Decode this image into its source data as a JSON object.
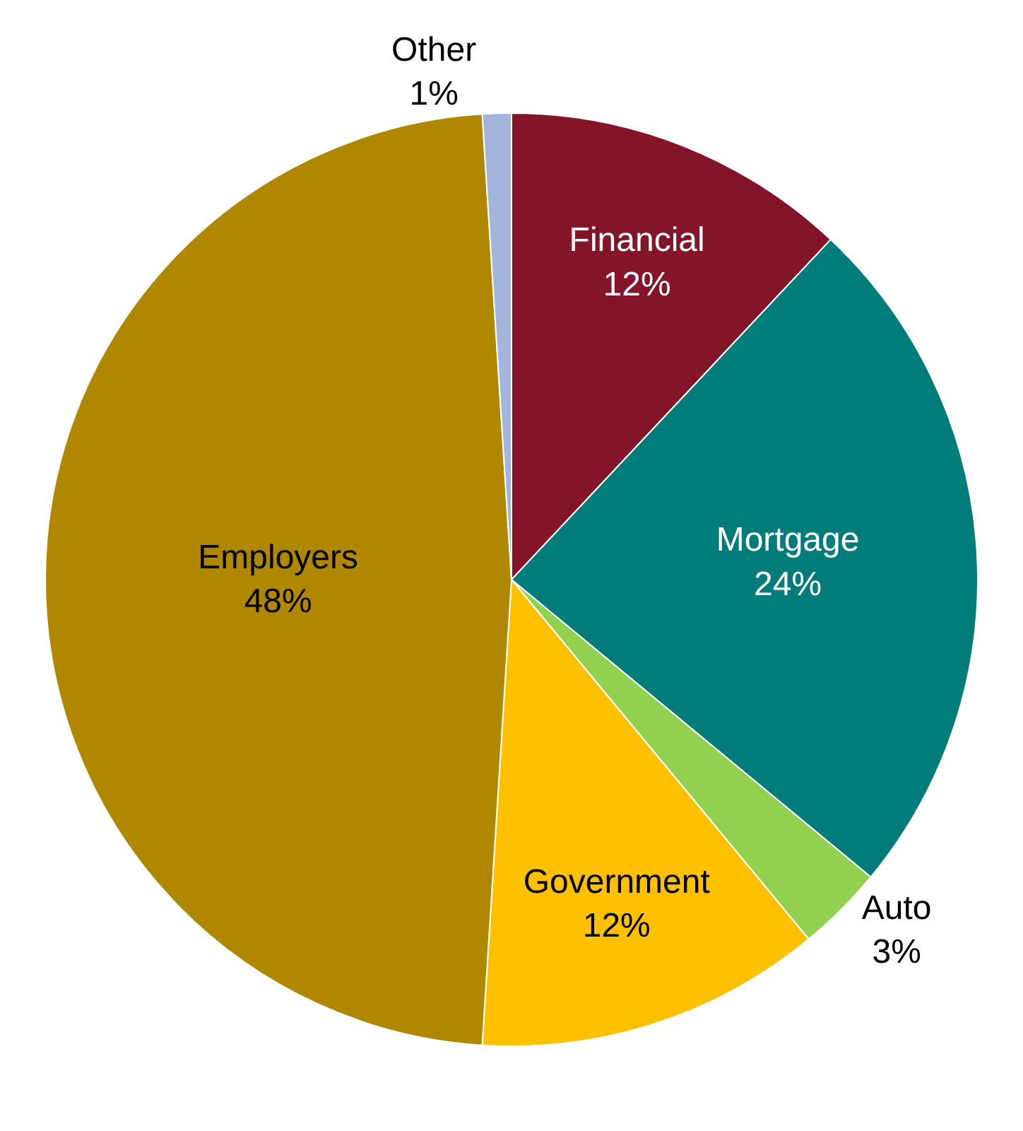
{
  "chart_data": {
    "type": "pie",
    "categories": [
      "Financial",
      "Mortgage",
      "Auto",
      "Government",
      "Employers",
      "Other"
    ],
    "values": [
      12,
      24,
      3,
      12,
      48,
      1
    ],
    "value_labels": [
      "12%",
      "24%",
      "3%",
      "12%",
      "48%",
      "1%"
    ],
    "colors": [
      "#841428",
      "#007c7a",
      "#92d050",
      "#ffc000",
      "#b08800",
      "#a3b5dc"
    ],
    "legend": false
  }
}
